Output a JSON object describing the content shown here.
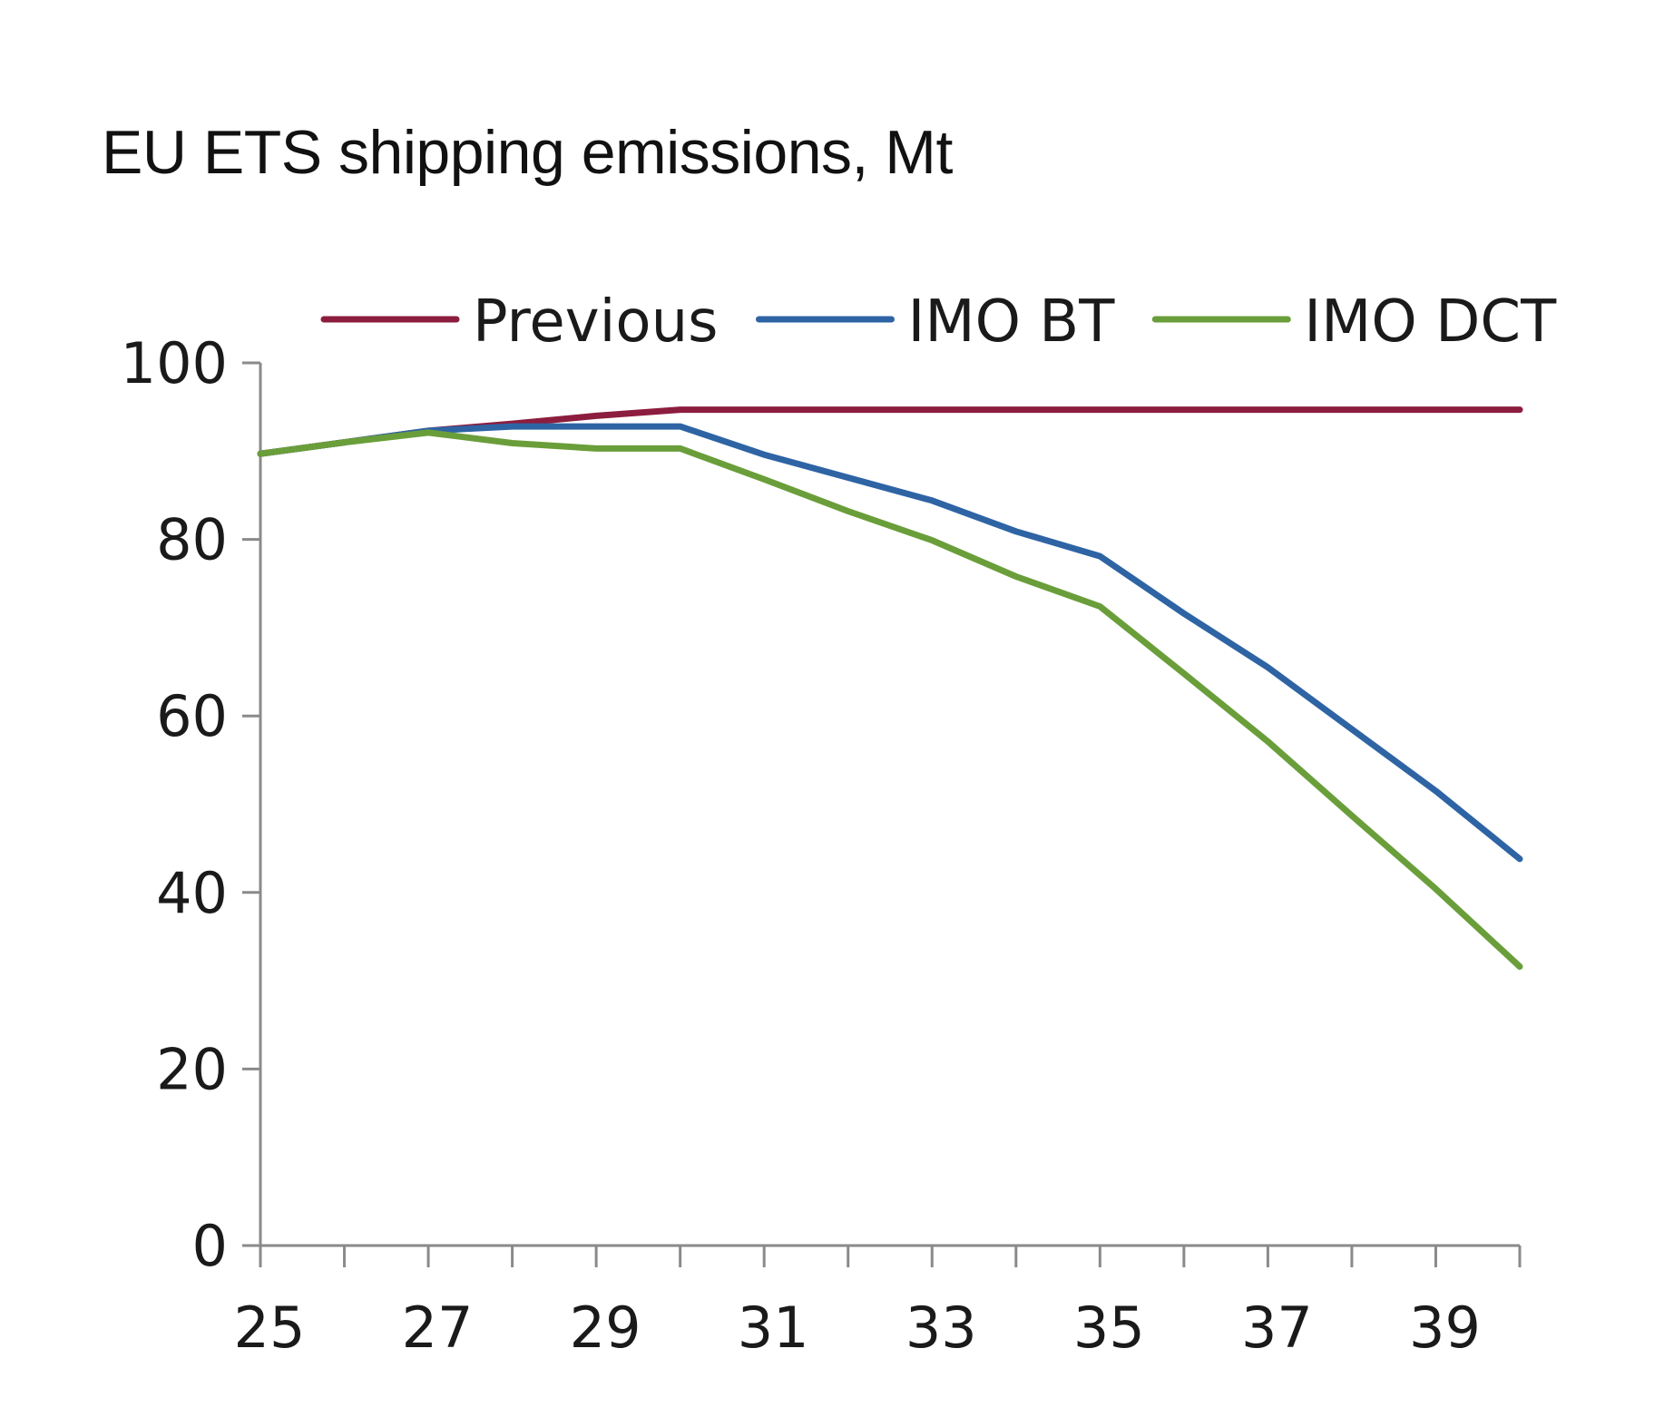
{
  "chart_data": {
    "type": "line",
    "title": "EU ETS shipping emissions, Mt",
    "xlabel": "",
    "ylabel": "",
    "x": [
      2025,
      2026,
      2027,
      2028,
      2029,
      2030,
      2031,
      2032,
      2033,
      2034,
      2035,
      2036,
      2037,
      2038,
      2039,
      2040
    ],
    "x_tick_values": [
      2025,
      2027,
      2029,
      2031,
      2033,
      2035,
      2037,
      2039
    ],
    "x_tick_labels": [
      "25",
      "27",
      "29",
      "31",
      "33",
      "35",
      "37",
      "39"
    ],
    "xlim": [
      2025,
      2040
    ],
    "y_ticks": [
      0,
      20,
      40,
      60,
      80,
      100
    ],
    "y_tick_labels": [
      "0",
      "20",
      "40",
      "60",
      "80",
      "100"
    ],
    "ylim": [
      0,
      100
    ],
    "grid": false,
    "legend_position": "top",
    "series": [
      {
        "name": "Previous",
        "color": "#8c1d3f",
        "values": [
          89.7,
          91.0,
          92.3,
          93.1,
          94.0,
          94.7,
          94.7,
          94.7,
          94.7,
          94.7,
          94.7,
          94.7,
          94.7,
          94.7,
          94.7,
          94.7
        ]
      },
      {
        "name": "IMO BT",
        "color": "#2e64a4",
        "values": [
          89.7,
          91.0,
          92.3,
          92.8,
          92.8,
          92.8,
          89.6,
          87.0,
          84.4,
          80.9,
          78.1,
          71.6,
          65.5,
          58.5,
          51.5,
          43.8
        ]
      },
      {
        "name": "IMO DCT",
        "color": "#6a9e3a",
        "values": [
          89.7,
          91.0,
          92.1,
          90.9,
          90.3,
          90.3,
          86.8,
          83.2,
          79.9,
          75.8,
          72.4,
          64.8,
          57.1,
          48.7,
          40.4,
          31.6
        ]
      }
    ]
  }
}
